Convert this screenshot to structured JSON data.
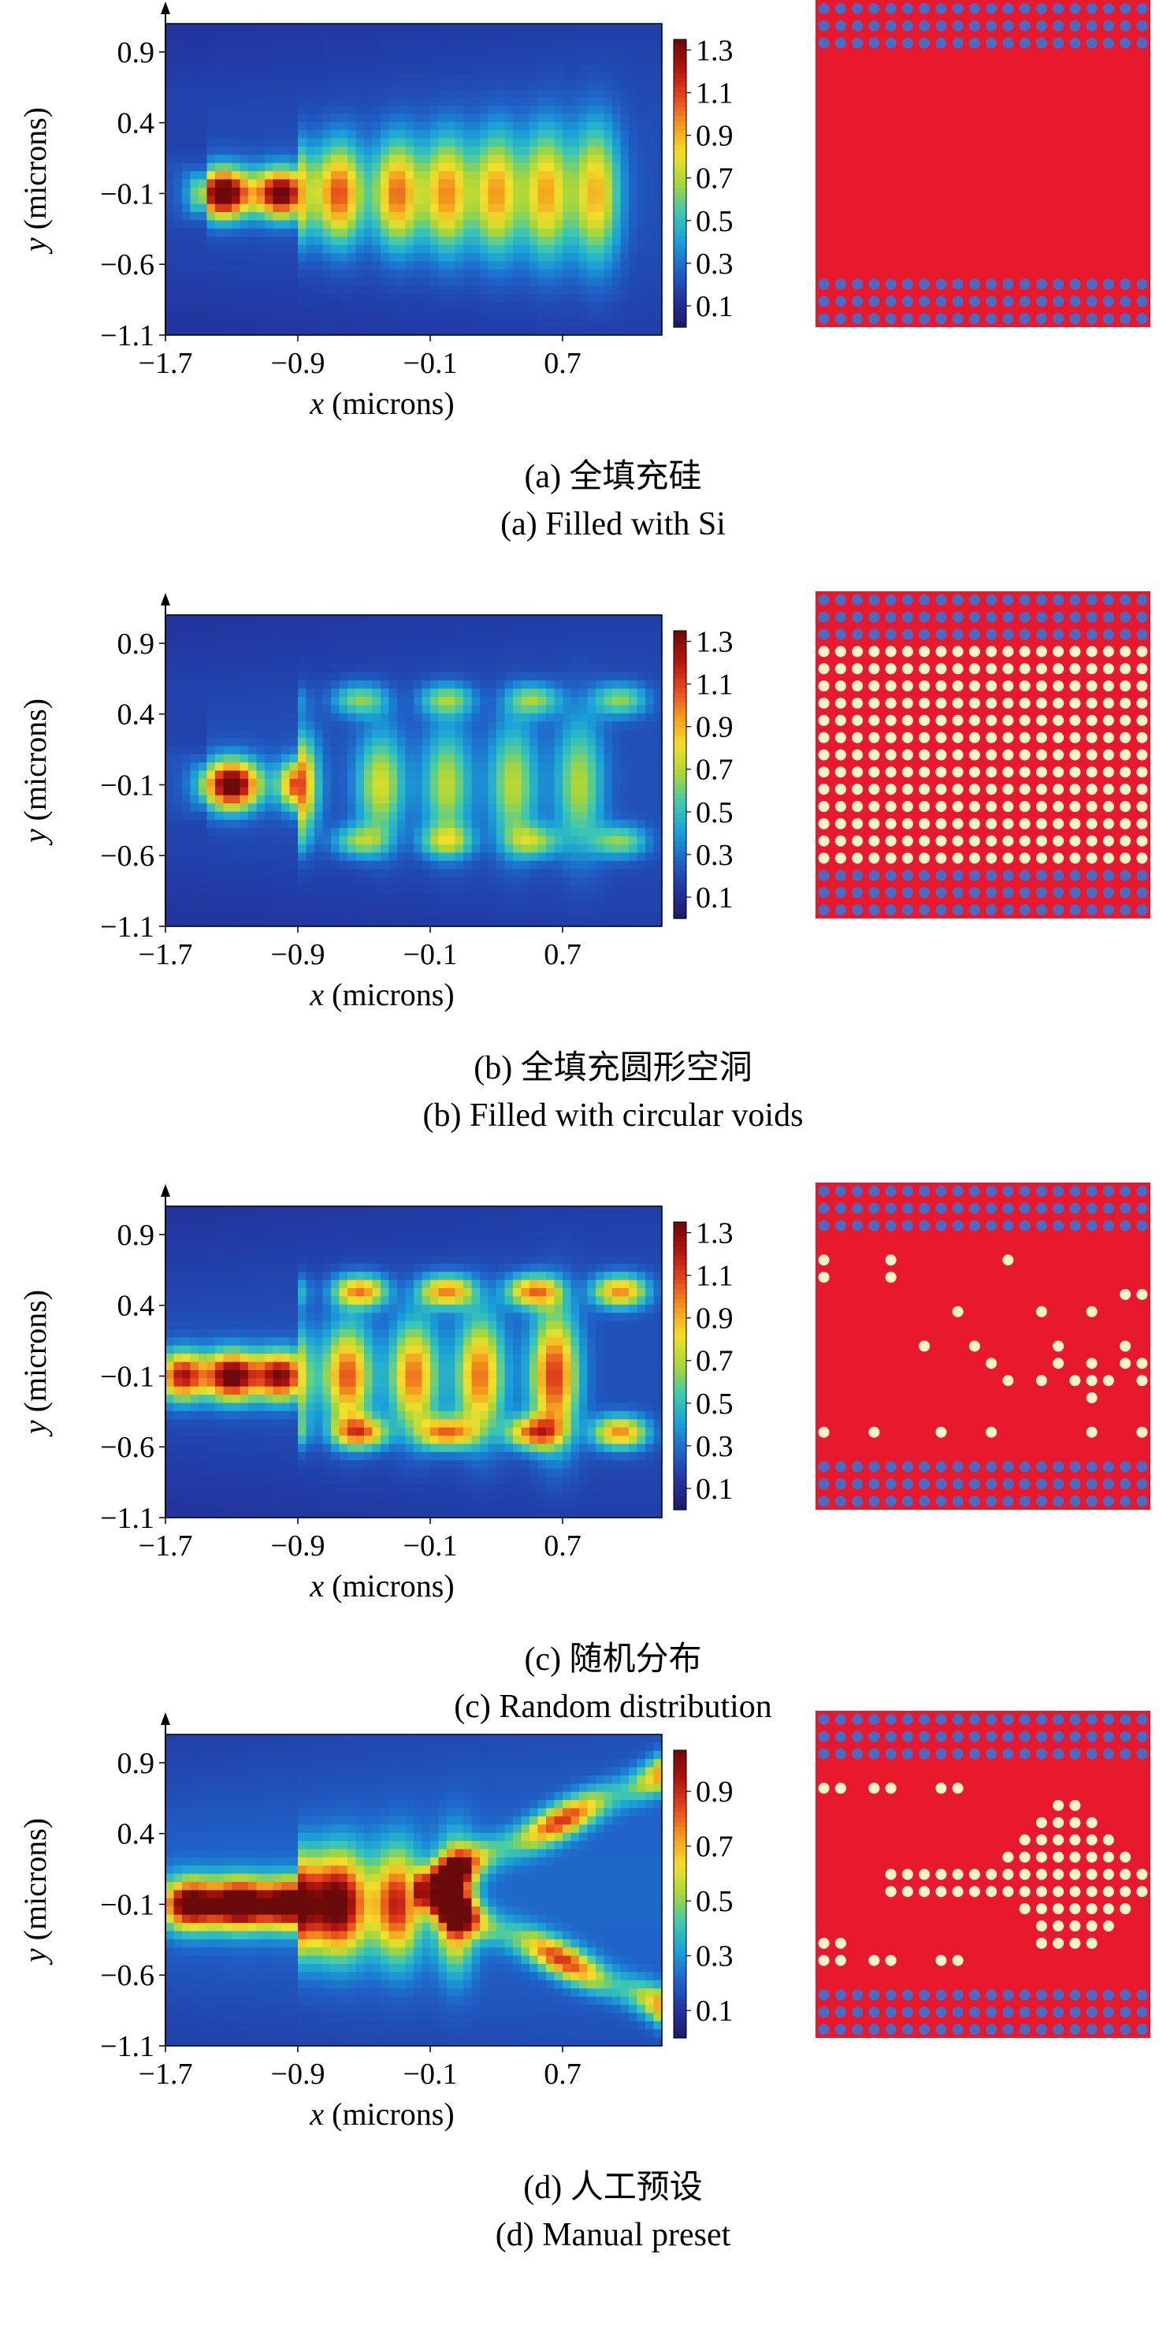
{
  "colors": {
    "colormap": [
      "#1c1a66",
      "#22349e",
      "#1f62c8",
      "#1aa0d8",
      "#3ec8b0",
      "#a6d63a",
      "#f2e02a",
      "#f49a1e",
      "#e6441e",
      "#b0140e",
      "#6a0a0a"
    ],
    "silicon_red": "#e8192c",
    "hole_blue": "#4a6bc4",
    "void_cream": "#fbf4c8"
  },
  "chart_data": [
    {
      "type": "heatmap",
      "panel": "a",
      "xlabel_italic": "x",
      "xlabel_rest": " (microns)",
      "ylabel_italic": "y",
      "ylabel_rest": " (microns)",
      "x_ticks": [
        "−1.7",
        "−0.9",
        "−0.1",
        "0.7"
      ],
      "y_ticks": [
        "0.9",
        "0.4",
        "−0.1",
        "−0.6",
        "−1.1"
      ],
      "colorbar_ticks": [
        "1.3",
        "1.1",
        "0.9",
        "0.7",
        "0.5",
        "0.3",
        "0.1"
      ],
      "colorbar_range": [
        0,
        1.35
      ],
      "xlim": [
        -1.7,
        1.3
      ],
      "ylim": [
        -1.1,
        1.1
      ],
      "lobes": [
        {
          "x": -1.35,
          "w": 0.11,
          "v": 1.32
        },
        {
          "x": -1.0,
          "w": 0.11,
          "v": 1.2
        },
        {
          "x": -0.65,
          "w": 0.1,
          "v": 0.85
        },
        {
          "x": -0.3,
          "w": 0.1,
          "v": 0.8
        },
        {
          "x": 0.0,
          "w": 0.1,
          "v": 0.75
        },
        {
          "x": 0.3,
          "w": 0.1,
          "v": 0.72
        },
        {
          "x": 0.6,
          "w": 0.1,
          "v": 0.7
        },
        {
          "x": 0.9,
          "w": 0.1,
          "v": 0.68
        }
      ],
      "caption_zh": "(a) 全填充硅",
      "caption_en": "(a) Filled with Si",
      "structure": "Filled with Si"
    },
    {
      "type": "heatmap",
      "panel": "b",
      "xlabel_italic": "x",
      "xlabel_rest": " (microns)",
      "ylabel_italic": "y",
      "ylabel_rest": " (microns)",
      "x_ticks": [
        "−1.7",
        "−0.9",
        "−0.1",
        "0.7"
      ],
      "y_ticks": [
        "0.9",
        "0.4",
        "−0.1",
        "−0.6",
        "−1.1"
      ],
      "colorbar_ticks": [
        "1.3",
        "1.1",
        "0.9",
        "0.7",
        "0.5",
        "0.3",
        "0.1"
      ],
      "colorbar_range": [
        0,
        1.35
      ],
      "xlim": [
        -1.7,
        1.3
      ],
      "ylim": [
        -1.1,
        1.1
      ],
      "lobes": [
        {
          "x": -1.3,
          "w": 0.12,
          "v": 1.25
        },
        {
          "x": -0.9,
          "w": 0.08,
          "v": 0.9
        },
        {
          "x": -0.4,
          "w": 0.1,
          "v": 0.55
        },
        {
          "x": 0.0,
          "w": 0.1,
          "v": 0.5
        },
        {
          "x": 0.4,
          "w": 0.1,
          "v": 0.5
        },
        {
          "x": 0.8,
          "w": 0.1,
          "v": 0.48
        }
      ],
      "caption_zh": "(b) 全填充圆形空洞",
      "caption_en": "(b) Filled with circular voids",
      "structure": "Filled with circular voids"
    },
    {
      "type": "heatmap",
      "panel": "c",
      "xlabel_italic": "x",
      "xlabel_rest": " (microns)",
      "ylabel_italic": "y",
      "ylabel_rest": " (microns)",
      "x_ticks": [
        "−1.7",
        "−0.9",
        "−0.1",
        "0.7"
      ],
      "y_ticks": [
        "0.9",
        "0.4",
        "−0.1",
        "−0.6",
        "−1.1"
      ],
      "colorbar_ticks": [
        "1.3",
        "1.1",
        "0.9",
        "0.7",
        "0.5",
        "0.3",
        "0.1"
      ],
      "colorbar_range": [
        0,
        1.35
      ],
      "xlim": [
        -1.7,
        1.3
      ],
      "ylim": [
        -1.1,
        1.1
      ],
      "lobes": [
        {
          "x": -1.6,
          "w": 0.1,
          "v": 1.0
        },
        {
          "x": -1.3,
          "w": 0.11,
          "v": 1.2
        },
        {
          "x": -1.0,
          "w": 0.11,
          "v": 1.1
        },
        {
          "x": -0.6,
          "w": 0.1,
          "v": 0.85
        },
        {
          "x": -0.2,
          "w": 0.1,
          "v": 0.8
        },
        {
          "x": 0.2,
          "w": 0.1,
          "v": 0.8
        },
        {
          "x": 0.65,
          "w": 0.1,
          "v": 0.9
        }
      ],
      "caption_zh": "(c) 随机分布",
      "caption_en": "(c) Random distribution",
      "structure": "Random distribution"
    },
    {
      "type": "heatmap",
      "panel": "d",
      "xlabel_italic": "x",
      "xlabel_rest": " (microns)",
      "ylabel_italic": "y",
      "ylabel_rest": " (microns)",
      "x_ticks": [
        "−1.7",
        "−0.9",
        "−0.1",
        "0.7"
      ],
      "y_ticks": [
        "0.9",
        "0.4",
        "−0.1",
        "−0.6",
        "−1.1"
      ],
      "colorbar_ticks": [
        "0.9",
        "0.7",
        "0.5",
        "0.3",
        "0.1"
      ],
      "colorbar_range": [
        0,
        1.05
      ],
      "xlim": [
        -1.7,
        1.3
      ],
      "ylim": [
        -1.1,
        1.1
      ],
      "lobes": [
        {
          "x": -1.55,
          "w": 0.12,
          "v": 0.95
        },
        {
          "x": -1.25,
          "w": 0.12,
          "v": 1.0
        },
        {
          "x": -0.95,
          "w": 0.12,
          "v": 0.95
        },
        {
          "x": -0.65,
          "w": 0.12,
          "v": 0.88
        },
        {
          "x": -0.3,
          "w": 0.1,
          "v": 0.7
        },
        {
          "x": 0.05,
          "w": 0.08,
          "v": 0.75
        }
      ],
      "caption_zh": "(d) 人工预设",
      "caption_en": "(d) Manual preset",
      "structure": "Manual preset"
    }
  ]
}
